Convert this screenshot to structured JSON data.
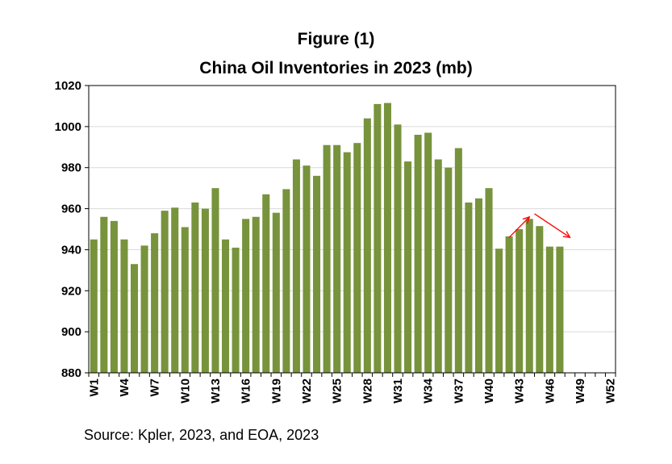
{
  "chart_data": {
    "type": "bar",
    "title": "Figure (1)",
    "subtitle": "China Oil Inventories in 2023 (mb)",
    "source": "Source: Kpler, 2023, and EOA, 2023",
    "xlabel": "",
    "ylabel": "",
    "ylim": [
      880,
      1020
    ],
    "yticks": [
      880,
      900,
      920,
      940,
      960,
      980,
      1000,
      1020
    ],
    "grid": true,
    "bar_color": "#77933c",
    "annotation_color": "#ff0000",
    "categories": [
      "W1",
      "W2",
      "W3",
      "W4",
      "W5",
      "W6",
      "W7",
      "W8",
      "W9",
      "W10",
      "W11",
      "W12",
      "W13",
      "W14",
      "W15",
      "W16",
      "W17",
      "W18",
      "W19",
      "W20",
      "W21",
      "W22",
      "W23",
      "W24",
      "W25",
      "W26",
      "W27",
      "W28",
      "W29",
      "W30",
      "W31",
      "W32",
      "W33",
      "W34",
      "W35",
      "W36",
      "W37",
      "W38",
      "W39",
      "W40",
      "W41",
      "W42",
      "W43",
      "W44",
      "W45",
      "W46",
      "W47",
      "W48",
      "W49",
      "W50",
      "W51",
      "W52"
    ],
    "tick_labels": [
      "W1",
      "W4",
      "W7",
      "W10",
      "W13",
      "W16",
      "W19",
      "W22",
      "W25",
      "W28",
      "W31",
      "W34",
      "W37",
      "W40",
      "W43",
      "W46",
      "W49",
      "W52"
    ],
    "values": [
      945,
      956,
      954,
      945,
      933,
      942,
      948,
      959,
      960.5,
      951,
      963,
      960,
      970,
      945,
      941,
      955,
      956,
      967,
      958,
      969.5,
      984,
      981,
      976,
      991,
      991,
      987.5,
      992,
      1004,
      1011,
      1011.5,
      1001,
      983,
      996,
      997,
      984,
      980,
      989.5,
      963,
      965,
      970,
      940.5,
      946.5,
      950,
      955,
      951.5,
      941.5,
      941.5,
      null,
      null,
      null,
      null,
      null
    ],
    "annotations": [
      {
        "type": "arrow",
        "from": {
          "week": 42,
          "value": 946
        },
        "to": {
          "week": 44,
          "value": 956
        }
      },
      {
        "type": "arrow",
        "from": {
          "week": 44.5,
          "value": 957.5
        },
        "to": {
          "week": 48,
          "value": 946
        }
      }
    ]
  }
}
